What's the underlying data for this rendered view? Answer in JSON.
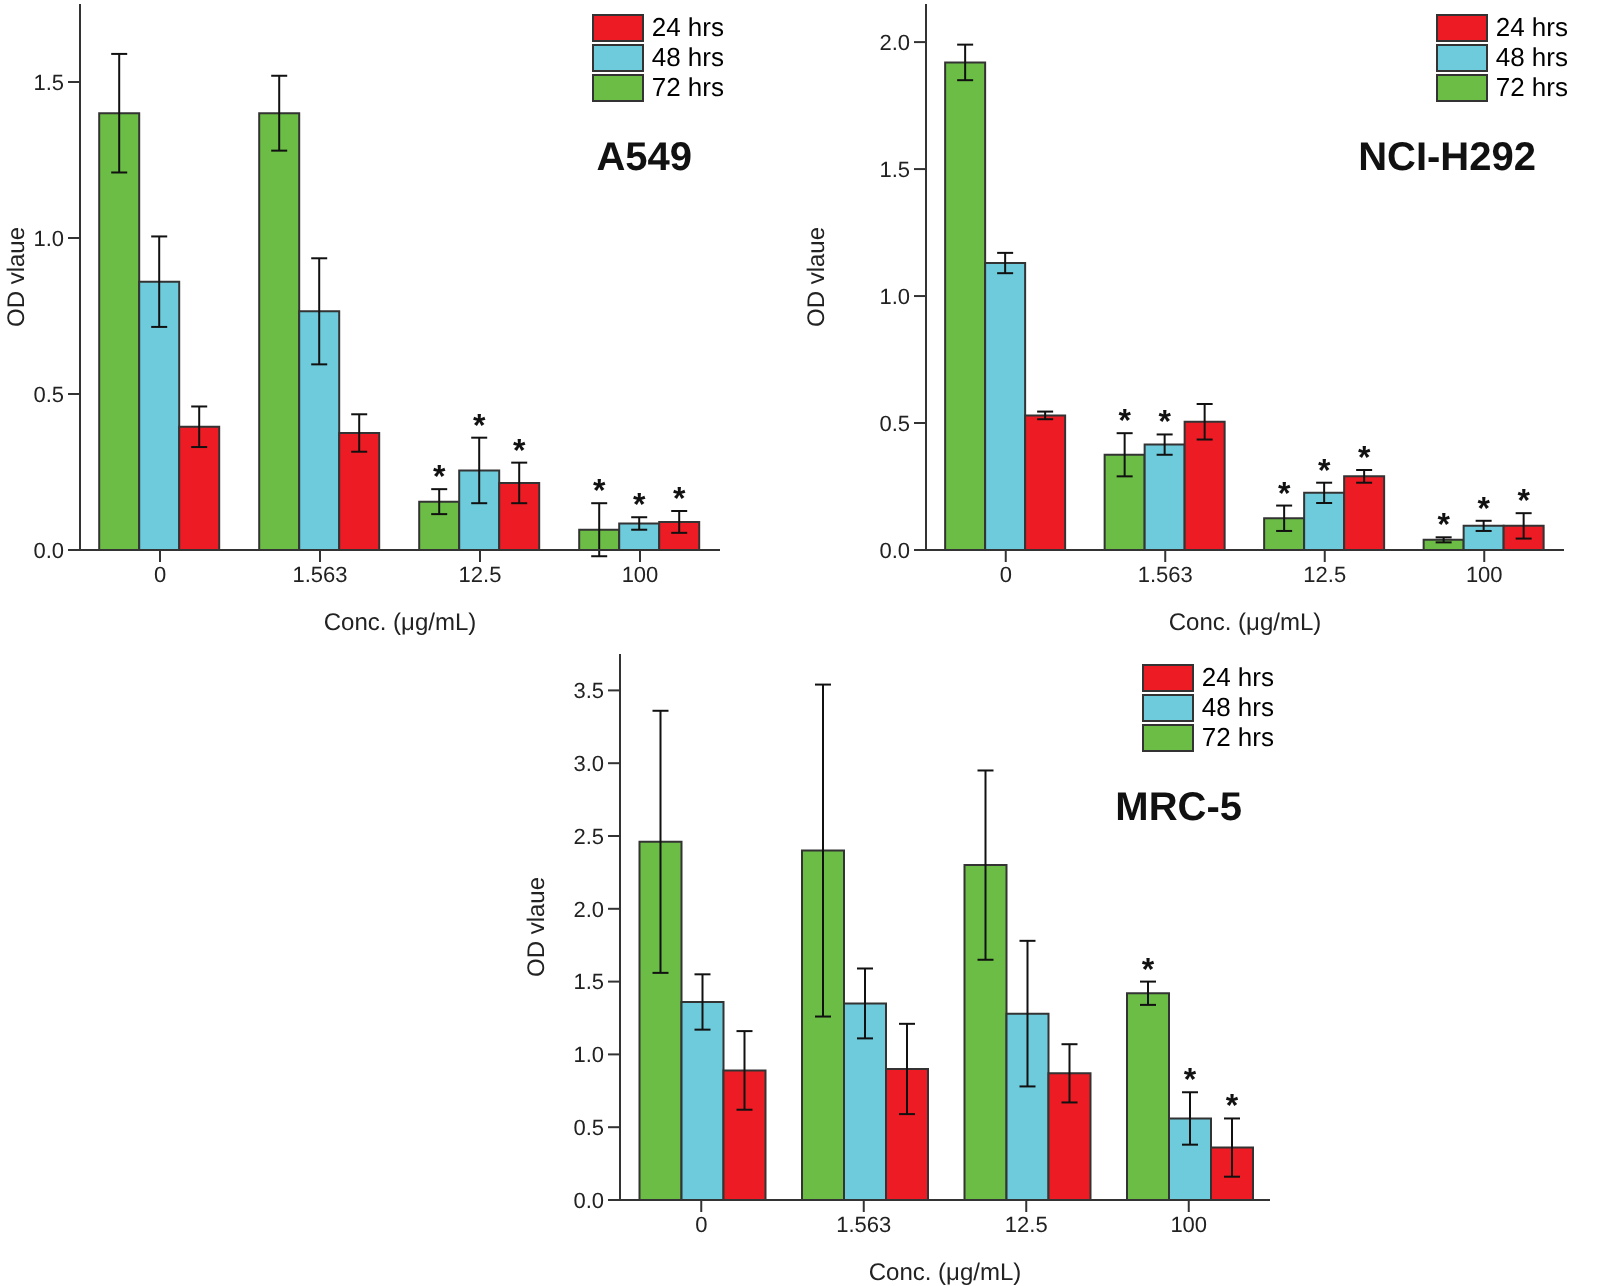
{
  "chart_data": [
    {
      "type": "bar",
      "title": "A549",
      "xlabel": "Conc. (μg/mL)",
      "ylabel": "OD vlaue",
      "categories": [
        "0",
        "1.563",
        "12.5",
        "100"
      ],
      "ylim": [
        0,
        1.75
      ],
      "yticks": [
        {
          "value": 0,
          "label": "0.0"
        },
        0.5,
        {
          "value": 1,
          "label": "1.0"
        },
        1.5
      ],
      "legend": "top right",
      "series": [
        {
          "name": "72 hrs",
          "color": "#6cbd45",
          "values": [
            1.4,
            1.4,
            0.155,
            0.065
          ],
          "errors": [
            0.19,
            0.12,
            0.04,
            0.085
          ],
          "value_labels": [
            null,
            null,
            "*",
            "*"
          ]
        },
        {
          "name": "48 hrs",
          "color": "#6dcbdc",
          "values": [
            0.86,
            0.765,
            0.255,
            0.085
          ],
          "errors": [
            0.145,
            0.17,
            0.105,
            0.02
          ],
          "value_labels": [
            null,
            null,
            "*",
            "*"
          ]
        },
        {
          "name": "24 hrs",
          "color": "#ed1c24",
          "values": [
            0.395,
            0.375,
            0.215,
            0.09
          ],
          "errors": [
            0.065,
            0.06,
            0.065,
            0.035
          ],
          "value_labels": [
            null,
            null,
            "*",
            "*"
          ]
        }
      ]
    },
    {
      "type": "bar",
      "title": "NCI-H292",
      "xlabel": "Conc. (μg/mL)",
      "ylabel": "OD vlaue",
      "categories": [
        "0",
        "1.563",
        "12.5",
        "100"
      ],
      "ylim": [
        0,
        2.15
      ],
      "yticks": [
        {
          "value": 0,
          "label": "0.0"
        },
        0.5,
        {
          "value": 1,
          "label": "1.0"
        },
        1.5,
        {
          "value": 2,
          "label": "2.0"
        }
      ],
      "legend": "top right",
      "series": [
        {
          "name": "72 hrs",
          "color": "#6cbd45",
          "values": [
            1.92,
            0.375,
            0.125,
            0.04
          ],
          "errors": [
            0.07,
            0.085,
            0.05,
            0.01
          ],
          "value_labels": [
            null,
            "*",
            "*",
            "*"
          ]
        },
        {
          "name": "48 hrs",
          "color": "#6dcbdc",
          "values": [
            1.13,
            0.415,
            0.225,
            0.095
          ],
          "errors": [
            0.04,
            0.04,
            0.04,
            0.02
          ],
          "value_labels": [
            null,
            "*",
            "*",
            "*"
          ]
        },
        {
          "name": "24 hrs",
          "color": "#ed1c24",
          "values": [
            0.53,
            0.505,
            0.29,
            0.095
          ],
          "errors": [
            0.015,
            0.07,
            0.025,
            0.05
          ],
          "value_labels": [
            null,
            null,
            "*",
            "*"
          ]
        }
      ]
    },
    {
      "type": "bar",
      "title": "MRC-5",
      "xlabel": "Conc. (μg/mL)",
      "ylabel": "OD vlaue",
      "categories": [
        "0",
        "1.563",
        "12.5",
        "100"
      ],
      "ylim": [
        0,
        3.75
      ],
      "yticks": [
        {
          "value": 0,
          "label": "0.0"
        },
        0.5,
        {
          "value": 1,
          "label": "1.0"
        },
        1.5,
        {
          "value": 2,
          "label": "2.0"
        },
        2.5,
        {
          "value": 3,
          "label": "3.0"
        },
        3.5
      ],
      "legend": "top right",
      "series": [
        {
          "name": "72 hrs",
          "color": "#6cbd45",
          "values": [
            2.46,
            2.4,
            2.3,
            1.42
          ],
          "errors": [
            0.9,
            1.14,
            0.65,
            0.08
          ],
          "value_labels": [
            null,
            null,
            null,
            "*"
          ]
        },
        {
          "name": "48 hrs",
          "color": "#6dcbdc",
          "values": [
            1.36,
            1.35,
            1.28,
            0.56
          ],
          "errors": [
            0.19,
            0.24,
            0.5,
            0.18
          ],
          "value_labels": [
            null,
            null,
            null,
            "*"
          ]
        },
        {
          "name": "24 hrs",
          "color": "#ed1c24",
          "values": [
            0.89,
            0.9,
            0.87,
            0.36
          ],
          "errors": [
            0.27,
            0.31,
            0.2,
            0.2
          ],
          "value_labels": [
            null,
            null,
            null,
            "*"
          ]
        }
      ]
    }
  ]
}
